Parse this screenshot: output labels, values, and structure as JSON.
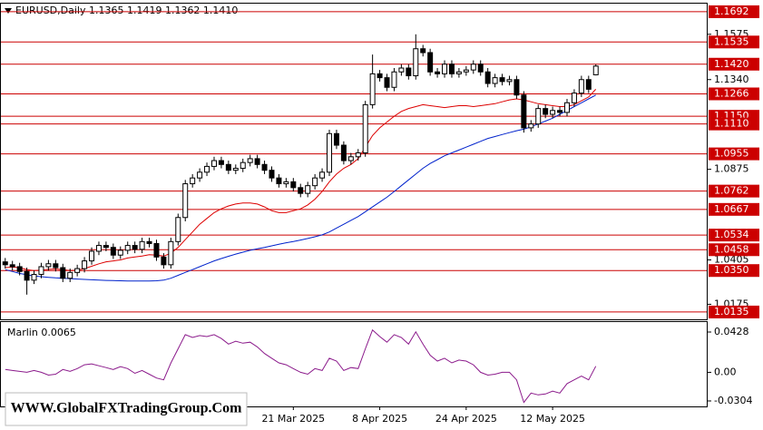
{
  "chart_data": [
    {
      "type": "candlestick",
      "title": "EURUSD,Daily  1.1365 1.1419 1.1362 1.1410",
      "open": [
        1.0395,
        1.038,
        1.037,
        1.0345,
        1.03,
        1.033,
        1.037,
        1.0385,
        1.0365,
        1.031,
        1.034,
        1.036,
        1.04,
        1.045,
        1.048,
        1.047,
        1.043,
        1.0455,
        1.048,
        1.046,
        1.05,
        1.049,
        1.042,
        1.038,
        1.05,
        1.0625,
        1.08,
        1.083,
        1.086,
        1.089,
        1.092,
        1.09,
        1.087,
        1.088,
        1.091,
        1.093,
        1.09,
        1.087,
        1.083,
        1.08,
        1.081,
        1.078,
        1.075,
        1.079,
        1.083,
        1.086,
        1.106,
        1.1,
        1.092,
        1.094,
        1.096,
        1.121,
        1.137,
        1.135,
        1.13,
        1.138,
        1.14,
        1.136,
        1.15,
        1.148,
        1.138,
        1.137,
        1.142,
        1.137,
        1.138,
        1.139,
        1.142,
        1.138,
        1.132,
        1.135,
        1.133,
        1.134,
        1.126,
        1.109,
        1.111,
        1.119,
        1.116,
        1.118,
        1.117,
        1.122,
        1.127,
        1.134,
        1.1365
      ],
      "high": [
        1.0415,
        1.04,
        1.039,
        1.0365,
        1.035,
        1.039,
        1.0405,
        1.0405,
        1.0385,
        1.036,
        1.038,
        1.042,
        1.047,
        1.05,
        1.05,
        1.049,
        1.0475,
        1.05,
        1.05,
        1.052,
        1.052,
        1.051,
        1.044,
        1.052,
        1.0645,
        1.082,
        1.085,
        1.088,
        1.091,
        1.094,
        1.094,
        1.092,
        1.09,
        1.093,
        1.095,
        1.095,
        1.092,
        1.089,
        1.085,
        1.083,
        1.083,
        1.08,
        1.081,
        1.085,
        1.088,
        1.108,
        1.108,
        1.102,
        1.096,
        1.098,
        1.123,
        1.147,
        1.139,
        1.137,
        1.14,
        1.142,
        1.142,
        1.1575,
        1.152,
        1.15,
        1.14,
        1.144,
        1.144,
        1.14,
        1.141,
        1.144,
        1.144,
        1.14,
        1.137,
        1.137,
        1.136,
        1.136,
        1.128,
        1.113,
        1.121,
        1.121,
        1.12,
        1.12,
        1.124,
        1.129,
        1.136,
        1.136,
        1.1419
      ],
      "low": [
        1.036,
        1.035,
        1.0325,
        1.0225,
        1.028,
        1.031,
        1.035,
        1.0345,
        1.029,
        1.029,
        1.032,
        1.034,
        1.038,
        1.043,
        1.045,
        1.041,
        1.041,
        1.0435,
        1.044,
        1.044,
        1.047,
        1.04,
        1.036,
        1.036,
        1.048,
        1.0605,
        1.078,
        1.081,
        1.084,
        1.087,
        1.088,
        1.085,
        1.085,
        1.086,
        1.089,
        1.088,
        1.085,
        1.081,
        1.078,
        1.078,
        1.076,
        1.073,
        1.073,
        1.077,
        1.081,
        1.084,
        1.098,
        1.09,
        1.09,
        1.092,
        1.094,
        1.119,
        1.133,
        1.128,
        1.128,
        1.136,
        1.134,
        1.134,
        1.146,
        1.136,
        1.135,
        1.135,
        1.135,
        1.135,
        1.136,
        1.137,
        1.136,
        1.13,
        1.13,
        1.131,
        1.131,
        1.124,
        1.1065,
        1.107,
        1.109,
        1.114,
        1.114,
        1.115,
        1.115,
        1.12,
        1.125,
        1.127,
        1.1362
      ],
      "close": [
        1.038,
        1.037,
        1.0345,
        1.03,
        1.033,
        1.037,
        1.0385,
        1.0365,
        1.031,
        1.034,
        1.036,
        1.04,
        1.045,
        1.048,
        1.047,
        1.043,
        1.0455,
        1.048,
        1.046,
        1.05,
        1.049,
        1.042,
        1.038,
        1.05,
        1.0625,
        1.08,
        1.083,
        1.086,
        1.089,
        1.092,
        1.09,
        1.087,
        1.088,
        1.091,
        1.093,
        1.09,
        1.087,
        1.083,
        1.08,
        1.081,
        1.078,
        1.075,
        1.079,
        1.083,
        1.086,
        1.106,
        1.1,
        1.092,
        1.094,
        1.096,
        1.121,
        1.137,
        1.135,
        1.13,
        1.138,
        1.14,
        1.136,
        1.15,
        1.148,
        1.138,
        1.137,
        1.142,
        1.137,
        1.138,
        1.139,
        1.142,
        1.138,
        1.132,
        1.135,
        1.133,
        1.134,
        1.126,
        1.109,
        1.111,
        1.119,
        1.116,
        1.118,
        1.117,
        1.122,
        1.127,
        1.134,
        1.129,
        1.141
      ],
      "lines": [
        {
          "color": "#dd0000",
          "values": [
            1.0365,
            1.0368,
            1.0365,
            1.0355,
            1.035,
            1.0352,
            1.0356,
            1.0358,
            1.0355,
            1.035,
            1.0352,
            1.036,
            1.0372,
            1.0385,
            1.0395,
            1.04,
            1.0405,
            1.0415,
            1.042,
            1.0425,
            1.0432,
            1.043,
            1.0425,
            1.044,
            1.047,
            1.051,
            1.055,
            1.059,
            1.062,
            1.065,
            1.067,
            1.0685,
            1.0695,
            1.07,
            1.07,
            1.0695,
            1.068,
            1.066,
            1.065,
            1.065,
            1.066,
            1.067,
            1.069,
            1.072,
            1.076,
            1.081,
            1.085,
            1.088,
            1.09,
            1.093,
            1.099,
            1.105,
            1.109,
            1.112,
            1.115,
            1.1175,
            1.119,
            1.12,
            1.121,
            1.1205,
            1.12,
            1.1195,
            1.12,
            1.1205,
            1.1205,
            1.12,
            1.1205,
            1.121,
            1.1215,
            1.1225,
            1.1235,
            1.124,
            1.1235,
            1.1225,
            1.1215,
            1.121,
            1.1205,
            1.12,
            1.12,
            1.121,
            1.123,
            1.125,
            1.129
          ]
        },
        {
          "color": "#0022cc",
          "values": [
            1.0355,
            1.0345,
            1.0335,
            1.0328,
            1.0322,
            1.0318,
            1.0315,
            1.0312,
            1.031,
            1.0308,
            1.0306,
            1.0304,
            1.0302,
            1.03,
            1.0299,
            1.0298,
            1.0297,
            1.0296,
            1.0296,
            1.0296,
            1.0296,
            1.0297,
            1.03,
            1.031,
            1.0325,
            1.034,
            1.0355,
            1.037,
            1.0385,
            1.04,
            1.0412,
            1.0424,
            1.0435,
            1.0445,
            1.0455,
            1.0463,
            1.047,
            1.0478,
            1.0486,
            1.0494,
            1.05,
            1.0508,
            1.0516,
            1.0525,
            1.0535,
            1.055,
            1.057,
            1.059,
            1.061,
            1.063,
            1.0655,
            1.068,
            1.0705,
            1.073,
            1.076,
            1.079,
            1.082,
            1.085,
            1.088,
            1.0905,
            1.0925,
            1.0945,
            1.096,
            1.0975,
            1.099,
            1.1005,
            1.102,
            1.1035,
            1.1045,
            1.1055,
            1.1065,
            1.1075,
            1.1083,
            1.1095,
            1.111,
            1.1125,
            1.114,
            1.116,
            1.118,
            1.12,
            1.122,
            1.124,
            1.126
          ]
        }
      ],
      "levels": [
        {
          "value": 1.1692,
          "label": "1.1692"
        },
        {
          "value": 1.1535,
          "label": "1.1535"
        },
        {
          "value": 1.142,
          "label": "1.1420"
        },
        {
          "value": 1.1266,
          "label": "1.1266"
        },
        {
          "value": 1.115,
          "label": "1.1150"
        },
        {
          "value": 1.111,
          "label": "1.1110"
        },
        {
          "value": 1.0955,
          "label": "1.0955"
        },
        {
          "value": 1.0762,
          "label": "1.0762"
        },
        {
          "value": 1.0667,
          "label": "1.0667"
        },
        {
          "value": 1.0534,
          "label": "1.0534"
        },
        {
          "value": 1.0458,
          "label": "1.0458"
        },
        {
          "value": 1.035,
          "label": "1.0350"
        },
        {
          "value": 1.0135,
          "label": "1.0135"
        }
      ],
      "level_color": "#cc0000",
      "yticks": [
        1.1575,
        {
          "value": 1.134,
          "label": "1.1340"
        },
        1.0875,
        1.0405,
        1.0175
      ],
      "ylim": [
        1.0097,
        1.1734
      ],
      "xlim": [
        -0.6,
        97.4
      ]
    },
    {
      "type": "line",
      "title": "Marlin 0.0065",
      "color": "#8b1a8b",
      "values": [
        0.003,
        0.002,
        0.001,
        0.0,
        0.002,
        0.0,
        -0.003,
        -0.002,
        0.003,
        0.001,
        0.004,
        0.008,
        0.009,
        0.007,
        0.005,
        0.003,
        0.006,
        0.004,
        -0.001,
        0.002,
        -0.002,
        -0.006,
        -0.008,
        0.01,
        0.025,
        0.04,
        0.037,
        0.039,
        0.038,
        0.04,
        0.036,
        0.03,
        0.033,
        0.031,
        0.032,
        0.027,
        0.02,
        0.015,
        0.01,
        0.008,
        0.004,
        0.0,
        -0.002,
        0.004,
        0.002,
        0.015,
        0.012,
        0.002,
        0.005,
        0.004,
        0.025,
        0.045,
        0.038,
        0.032,
        0.04,
        0.037,
        0.03,
        0.043,
        0.03,
        0.018,
        0.012,
        0.015,
        0.01,
        0.013,
        0.012,
        0.008,
        0.0,
        -0.003,
        -0.002,
        0.0,
        0.0,
        -0.008,
        -0.032,
        -0.022,
        -0.024,
        -0.023,
        -0.02,
        -0.022,
        -0.012,
        -0.008,
        -0.004,
        -0.008,
        0.0065
      ],
      "yticks": [
        0.0428,
        {
          "value": 0,
          "label": "0.00"
        },
        -0.0304
      ],
      "ylim": [
        -0.0362,
        0.0534
      ],
      "xlim": [
        -0.6,
        97.4
      ],
      "xticks": [
        {
          "value": 40,
          "label": "21 Mar 2025"
        },
        {
          "value": 52,
          "label": "8 Apr 2025"
        },
        {
          "value": 64,
          "label": "24 Apr 2025"
        },
        {
          "value": 76,
          "label": "12 May 2025"
        }
      ]
    }
  ],
  "watermark": "WWW.GlobalFXTradingGroup.Com"
}
